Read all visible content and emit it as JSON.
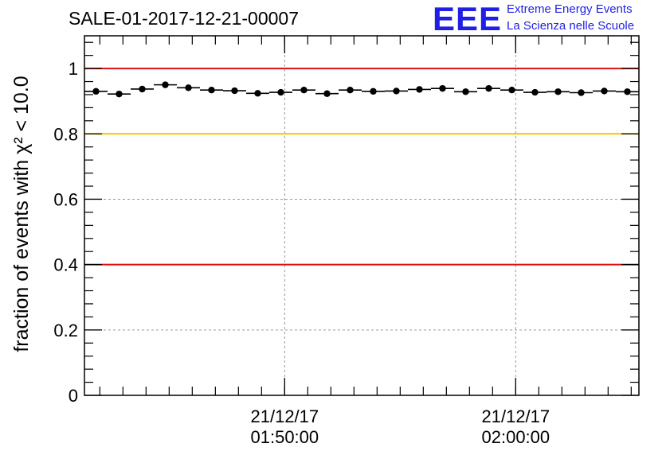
{
  "title": "SALE-01-2017-12-21-00007",
  "logo": {
    "mark": "EEE",
    "line1": "Extreme Energy Events",
    "line2": "La Scienza nelle Scuole"
  },
  "colors": {
    "red_line": "#e01010",
    "yellow_line": "#f5c400",
    "logo_blue": "#1f1fe6",
    "grid": "#999999"
  },
  "chart_data": {
    "type": "scatter",
    "ylabel": "fraction of events with χ² < 10.0",
    "ylim": [
      0,
      1.1
    ],
    "yticks": [
      0,
      0.2,
      0.4,
      0.6,
      0.8,
      1
    ],
    "ytick_labels": [
      "0",
      "0.2",
      "0.4",
      "0.6",
      "0.8",
      "1"
    ],
    "xrange_minutes": [
      "01:41:20",
      "02:05:20"
    ],
    "xticks": [
      {
        "time": "01:50:00",
        "date": "21/12/17"
      },
      {
        "time": "02:00:00",
        "date": "21/12/17"
      }
    ],
    "reference_lines": [
      {
        "y": 1.0,
        "color": "red"
      },
      {
        "y": 0.8,
        "color": "yellow"
      },
      {
        "y": 0.4,
        "color": "red"
      }
    ],
    "bin_width_s": 60,
    "points": [
      {
        "t": "01:41:50",
        "y": 0.93
      },
      {
        "t": "01:42:50",
        "y": 0.922
      },
      {
        "t": "01:43:50",
        "y": 0.937
      },
      {
        "t": "01:44:50",
        "y": 0.95
      },
      {
        "t": "01:45:50",
        "y": 0.941
      },
      {
        "t": "01:46:50",
        "y": 0.934
      },
      {
        "t": "01:47:50",
        "y": 0.932
      },
      {
        "t": "01:48:50",
        "y": 0.924
      },
      {
        "t": "01:49:50",
        "y": 0.927
      },
      {
        "t": "01:50:50",
        "y": 0.934
      },
      {
        "t": "01:51:50",
        "y": 0.923
      },
      {
        "t": "01:52:50",
        "y": 0.934
      },
      {
        "t": "01:53:50",
        "y": 0.93
      },
      {
        "t": "01:54:50",
        "y": 0.931
      },
      {
        "t": "01:55:50",
        "y": 0.936
      },
      {
        "t": "01:56:50",
        "y": 0.939
      },
      {
        "t": "01:57:50",
        "y": 0.929
      },
      {
        "t": "01:58:50",
        "y": 0.939
      },
      {
        "t": "01:59:50",
        "y": 0.934
      },
      {
        "t": "02:00:50",
        "y": 0.927
      },
      {
        "t": "02:01:50",
        "y": 0.929
      },
      {
        "t": "02:02:50",
        "y": 0.926
      },
      {
        "t": "02:03:50",
        "y": 0.931
      },
      {
        "t": "02:04:50",
        "y": 0.929
      }
    ]
  }
}
